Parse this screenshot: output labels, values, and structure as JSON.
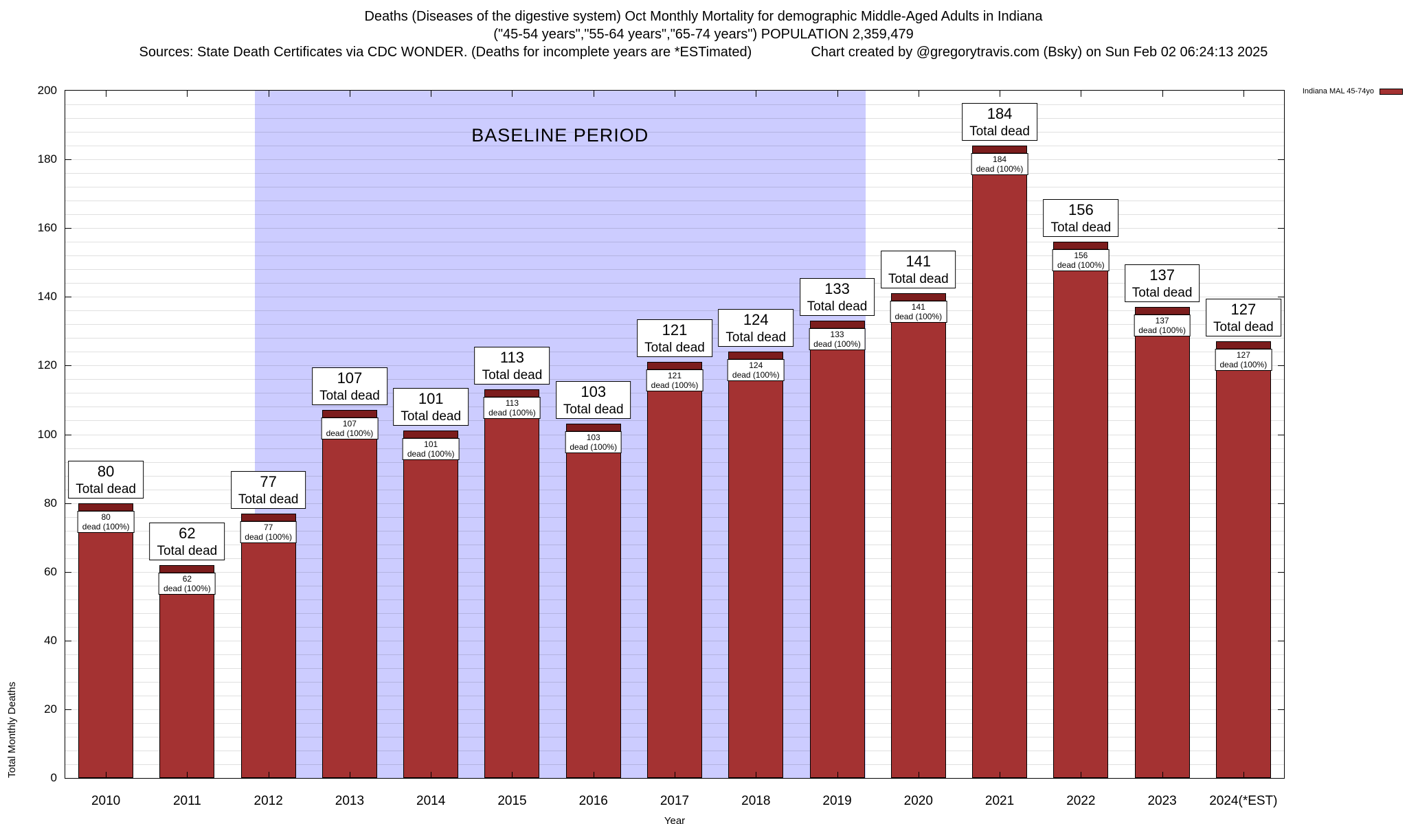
{
  "header": {
    "title_line1": "Deaths (Diseases of the digestive system) Oct Monthly Mortality for demographic Middle-Aged Adults in Indiana",
    "title_line2": "(\"45-54 years\",\"55-64 years\",\"65-74 years\") POPULATION 2,359,479",
    "sources": "Sources: State Death Certificates via CDC WONDER. (Deaths for incomplete years are *ESTimated)",
    "credit": "Chart created by @gregorytravis.com (Bsky) on Sun Feb 02 06:24:13 2025"
  },
  "legend": {
    "label": "Indiana MAL 45-74yo"
  },
  "chart_data": {
    "type": "bar",
    "title": "Deaths (Diseases of the digestive system) Oct Monthly Mortality for demographic Middle-Aged Adults in Indiana",
    "categories": [
      "2010",
      "2011",
      "2012",
      "2013",
      "2014",
      "2015",
      "2016",
      "2017",
      "2018",
      "2019",
      "2020",
      "2021",
      "2022",
      "2023",
      "2024(*EST)"
    ],
    "series": [
      {
        "name": "Indiana MAL 45-74yo",
        "values": [
          80,
          62,
          77,
          107,
          101,
          113,
          103,
          121,
          124,
          133,
          141,
          184,
          156,
          137,
          127
        ]
      }
    ],
    "callout_label": "Total dead",
    "inner_label": "dead (100%)",
    "xlabel": "Year",
    "ylabel": "Total Monthly Deaths",
    "ylim": [
      0,
      200
    ],
    "ytick_step": 20,
    "minor_grid_step": 4,
    "grid": true,
    "legend_position": "top-right",
    "baseline": {
      "label": "BASELINE PERIOD",
      "start_category": "2012",
      "end_category": "2019"
    },
    "colors": {
      "bar": "#a43232",
      "bar_cap": "#7c1d1d",
      "baseline_bg": "#ccccff"
    }
  }
}
